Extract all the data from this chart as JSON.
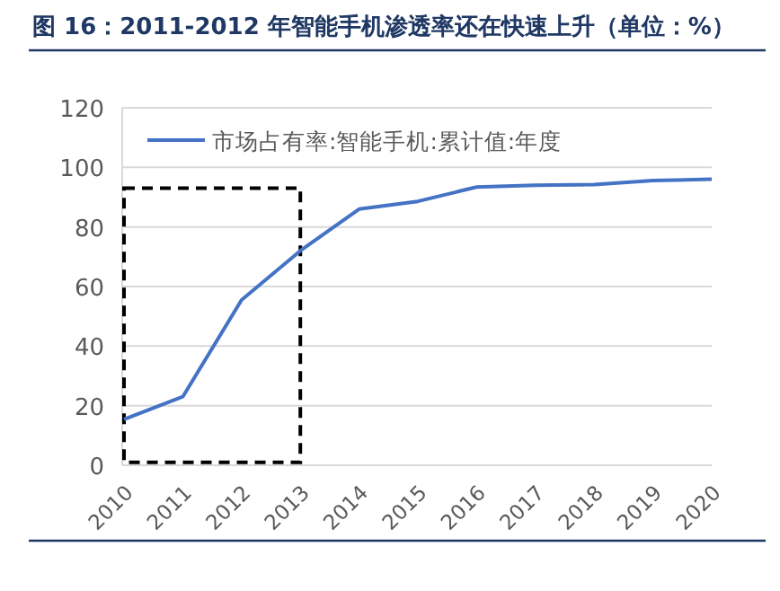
{
  "chart_data": {
    "type": "line",
    "title": "图 16：2011-2012 年智能手机渗透率还在快速上升（单位：%）",
    "categories": [
      "2010",
      "2011",
      "2012",
      "2013",
      "2014",
      "2015",
      "2016",
      "2017",
      "2018",
      "2019",
      "2020"
    ],
    "series": [
      {
        "name": "市场占有率:智能手机:累计值:年度",
        "color": "#4472c4",
        "values": [
          15.4,
          23,
          55.5,
          72,
          86,
          88.6,
          93.4,
          94,
          94.2,
          95.6,
          96
        ]
      }
    ],
    "ylim": [
      0,
      120
    ],
    "yticks": [
      0,
      20,
      40,
      60,
      80,
      100,
      120
    ],
    "grid": "y",
    "legend": "top left"
  }
}
